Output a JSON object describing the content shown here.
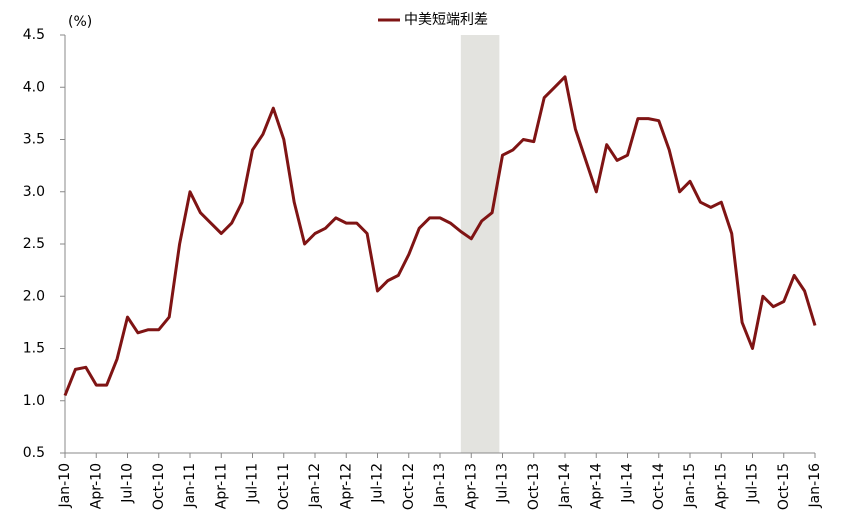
{
  "chart_data": {
    "type": "line",
    "y_label": "(%)",
    "categories": [
      "Jan-10",
      null,
      null,
      "Apr-10",
      null,
      null,
      "Jul-10",
      null,
      null,
      "Oct-10",
      null,
      null,
      "Jan-11",
      null,
      null,
      "Apr-11",
      null,
      null,
      "Jul-11",
      null,
      null,
      "Oct-11",
      null,
      null,
      "Jan-12",
      null,
      null,
      "Apr-12",
      null,
      null,
      "Jul-12",
      null,
      null,
      "Oct-12",
      null,
      null,
      "Jan-13",
      null,
      null,
      "Apr-13",
      null,
      null,
      "Jul-13",
      null,
      null,
      "Oct-13",
      null,
      null,
      "Jan-14",
      null,
      null,
      "Apr-14",
      null,
      null,
      "Jul-14",
      null,
      null,
      "Oct-14",
      null,
      null,
      "Jan-15",
      null,
      null,
      "Apr-15",
      null,
      null,
      "Jul-15",
      null,
      null,
      "Oct-15",
      null,
      null,
      "Jan-16"
    ],
    "series": [
      {
        "name": "中美短端利差",
        "color": "#7f1414",
        "values": [
          1.05,
          1.3,
          1.32,
          1.15,
          1.15,
          1.4,
          1.8,
          1.65,
          1.68,
          1.68,
          1.8,
          2.5,
          3.0,
          2.8,
          2.7,
          2.6,
          2.7,
          2.9,
          3.4,
          3.55,
          3.8,
          3.5,
          2.9,
          2.5,
          2.6,
          2.65,
          2.75,
          2.7,
          2.7,
          2.6,
          2.05,
          2.15,
          2.2,
          2.4,
          2.65,
          2.75,
          2.75,
          2.7,
          2.62,
          2.55,
          2.72,
          2.8,
          3.35,
          3.4,
          3.5,
          3.48,
          3.9,
          4.0,
          4.1,
          3.6,
          3.3,
          3.0,
          3.45,
          3.3,
          3.35,
          3.7,
          3.7,
          3.68,
          3.4,
          3.0,
          3.1,
          2.9,
          2.85,
          2.9,
          2.6,
          1.75,
          1.5,
          2.0,
          1.9,
          1.95,
          2.2,
          2.05,
          1.72
        ]
      }
    ],
    "highlight": [
      38,
      41.7
    ],
    "highlight_color": "#e3e3df",
    "ylim": [
      0.5,
      4.5
    ],
    "yticks": [
      0.5,
      {
        "value": 1,
        "label": "1.0"
      },
      1.5,
      {
        "value": 2,
        "label": "2.0"
      },
      2.5,
      {
        "value": 3,
        "label": "3.0"
      },
      3.5,
      {
        "value": 4,
        "label": "4.0"
      },
      4.5
    ],
    "grid": false,
    "legend": "top"
  }
}
